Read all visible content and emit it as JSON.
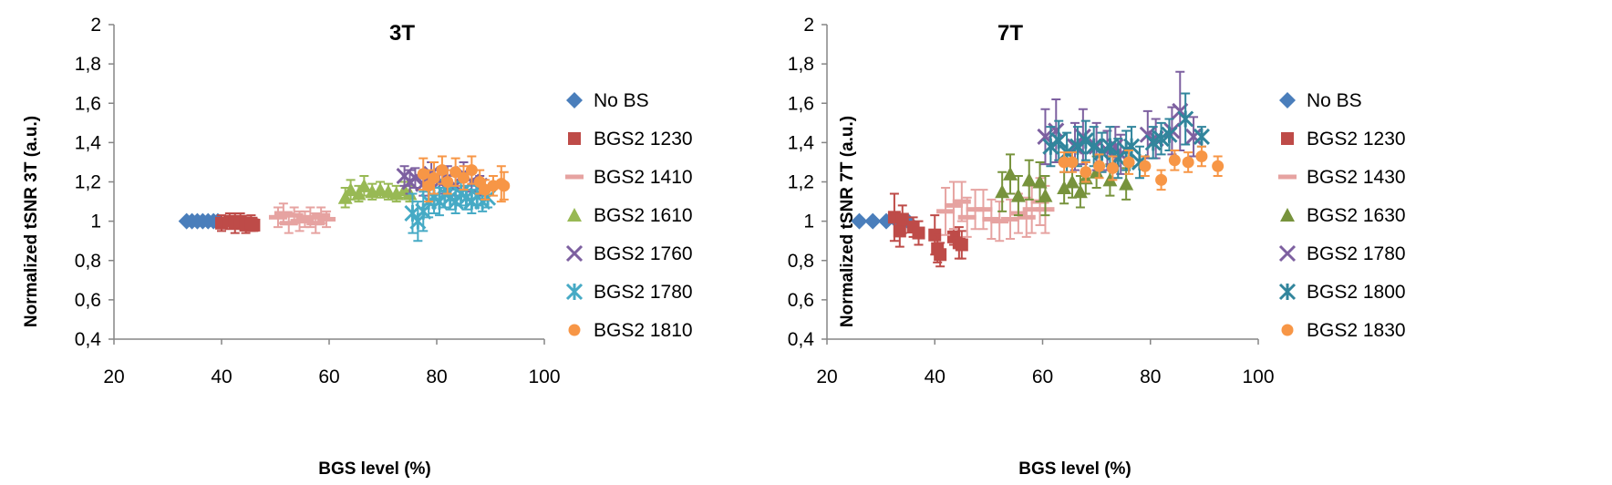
{
  "chart_data": [
    {
      "type": "scatter",
      "title": "3T",
      "xlabel": "BGS level (%)",
      "ylabel": "Normalized tSNR  3T (a.u.)",
      "xlim": [
        20,
        100
      ],
      "ylim": [
        0.4,
        2
      ],
      "xticks": [
        "20",
        "40",
        "60",
        "80",
        "100"
      ],
      "yticks": [
        "0,4",
        "0,6",
        "0,8",
        "1",
        "1,2",
        "1,4",
        "1,6",
        "1,8",
        "2"
      ],
      "error_bars": true,
      "legend_position": "right",
      "series": [
        {
          "name": "No BS",
          "marker": "diamond",
          "color": "#4a7ebb",
          "points": [
            [
              33.5,
              1.0,
              0
            ],
            [
              34.5,
              1.0,
              0
            ],
            [
              35.5,
              1.0,
              0
            ],
            [
              36.5,
              1.0,
              0
            ],
            [
              37.5,
              1.0,
              0
            ],
            [
              38.5,
              1.0,
              0
            ],
            [
              39.3,
              1.0,
              0
            ]
          ]
        },
        {
          "name": "BGS2 1230",
          "marker": "square",
          "color": "#be4b48",
          "points": [
            [
              40,
              0.99,
              0.04
            ],
            [
              41.5,
              1.0,
              0.04
            ],
            [
              42.5,
              0.99,
              0.05
            ],
            [
              43.5,
              1.0,
              0.04
            ],
            [
              44.5,
              0.98,
              0.04
            ],
            [
              45.5,
              0.99,
              0.04
            ],
            [
              46,
              0.98,
              0.03
            ]
          ]
        },
        {
          "name": "BGS2 1410",
          "marker": "dash",
          "color": "#e6a3a1",
          "points": [
            [
              50.5,
              1.02,
              0.05
            ],
            [
              51.5,
              1.04,
              0.05
            ],
            [
              52.5,
              0.99,
              0.05
            ],
            [
              53.5,
              1.03,
              0.04
            ],
            [
              54.5,
              1.0,
              0.05
            ],
            [
              55.5,
              1.01,
              0.04
            ],
            [
              56.5,
              1.02,
              0.05
            ],
            [
              57.5,
              0.99,
              0.05
            ],
            [
              58.5,
              1.03,
              0.04
            ],
            [
              59.5,
              1.01,
              0.04
            ]
          ]
        },
        {
          "name": "BGS2 1610",
          "marker": "triangle",
          "color": "#98b954",
          "points": [
            [
              63,
              1.12,
              0.05
            ],
            [
              64,
              1.16,
              0.05
            ],
            [
              65.5,
              1.14,
              0.04
            ],
            [
              66.5,
              1.18,
              0.05
            ],
            [
              68,
              1.15,
              0.04
            ],
            [
              69.5,
              1.16,
              0.04
            ],
            [
              71,
              1.15,
              0.04
            ],
            [
              72.5,
              1.14,
              0.04
            ],
            [
              74,
              1.16,
              0.04
            ],
            [
              75,
              1.14,
              0.04
            ]
          ]
        },
        {
          "name": "BGS2 1760",
          "marker": "x",
          "color": "#7d60a0",
          "points": [
            [
              74,
              1.23,
              0.05
            ],
            [
              75,
              1.2,
              0.06
            ],
            [
              76,
              1.22,
              0.05
            ],
            [
              77.5,
              1.19,
              0.06
            ],
            [
              79,
              1.24,
              0.06
            ],
            [
              80.5,
              1.2,
              0.06
            ],
            [
              82,
              1.22,
              0.06
            ],
            [
              83.5,
              1.18,
              0.05
            ],
            [
              85,
              1.24,
              0.06
            ],
            [
              86.5,
              1.2,
              0.05
            ],
            [
              88,
              1.18,
              0.05
            ]
          ]
        },
        {
          "name": "BGS2 1780",
          "marker": "asterisk",
          "color": "#46aac5",
          "points": [
            [
              75.5,
              1.04,
              0.1
            ],
            [
              76.5,
              1.0,
              0.1
            ],
            [
              77.5,
              1.05,
              0.1
            ],
            [
              78.5,
              1.1,
              0.08
            ],
            [
              79.5,
              1.12,
              0.08
            ],
            [
              80.5,
              1.1,
              0.07
            ],
            [
              81.5,
              1.14,
              0.07
            ],
            [
              82.5,
              1.12,
              0.06
            ],
            [
              83.5,
              1.1,
              0.06
            ],
            [
              84.5,
              1.14,
              0.06
            ],
            [
              85.5,
              1.12,
              0.06
            ],
            [
              86.5,
              1.1,
              0.06
            ],
            [
              87.5,
              1.13,
              0.05
            ],
            [
              88.5,
              1.1,
              0.05
            ],
            [
              89.5,
              1.12,
              0.05
            ]
          ]
        },
        {
          "name": "BGS2 1810",
          "marker": "circle",
          "color": "#f79646",
          "points": [
            [
              77.5,
              1.24,
              0.08
            ],
            [
              78.5,
              1.18,
              0.08
            ],
            [
              79.5,
              1.22,
              0.08
            ],
            [
              81,
              1.26,
              0.07
            ],
            [
              82,
              1.2,
              0.06
            ],
            [
              83.5,
              1.25,
              0.07
            ],
            [
              85,
              1.22,
              0.06
            ],
            [
              86.5,
              1.26,
              0.07
            ],
            [
              88,
              1.2,
              0.06
            ],
            [
              89,
              1.16,
              0.05
            ],
            [
              90.5,
              1.18,
              0.05
            ],
            [
              92,
              1.19,
              0.09
            ],
            [
              92.5,
              1.18,
              0.07
            ]
          ]
        }
      ]
    },
    {
      "type": "scatter",
      "title": "7T",
      "xlabel": "BGS level (%)",
      "ylabel": "Normalized tSNR 7T (a.u.)",
      "xlim": [
        20,
        100
      ],
      "ylim": [
        0.4,
        2
      ],
      "xticks": [
        "20",
        "40",
        "60",
        "80",
        "100"
      ],
      "yticks": [
        "0,4",
        "0,6",
        "0,8",
        "1",
        "1,2",
        "1,4",
        "1,6",
        "1,8",
        "2"
      ],
      "error_bars": true,
      "legend_position": "right",
      "series": [
        {
          "name": "No BS",
          "marker": "diamond",
          "color": "#4a7ebb",
          "points": [
            [
              26,
              1.0,
              0
            ],
            [
              28.5,
              1.0,
              0
            ],
            [
              31,
              1.0,
              0
            ],
            [
              33,
              1.0,
              0
            ],
            [
              35,
              1.0,
              0
            ]
          ]
        },
        {
          "name": "BGS2 1230",
          "marker": "square",
          "color": "#be4b48",
          "points": [
            [
              32.5,
              1.02,
              0.12
            ],
            [
              33.5,
              0.95,
              0.08
            ],
            [
              34,
              1.01,
              0.07
            ],
            [
              36,
              0.97,
              0.05
            ],
            [
              37,
              0.94,
              0.06
            ],
            [
              40,
              0.93,
              0.1
            ],
            [
              40.5,
              0.86,
              0.07
            ],
            [
              41,
              0.83,
              0.06
            ],
            [
              43.5,
              0.92,
              0.04
            ],
            [
              44.5,
              0.89,
              0.08
            ],
            [
              45,
              0.88,
              0.07
            ]
          ]
        },
        {
          "name": "BGS2 1430",
          "marker": "dash",
          "color": "#e6a3a1",
          "points": [
            [
              42,
              1.05,
              0.12
            ],
            [
              43.5,
              1.08,
              0.12
            ],
            [
              45,
              1.1,
              0.1
            ],
            [
              46,
              1.02,
              0.1
            ],
            [
              47.5,
              1.06,
              0.1
            ],
            [
              49,
              1.06,
              0.1
            ],
            [
              50.5,
              1.01,
              0.1
            ],
            [
              52,
              1.0,
              0.1
            ],
            [
              54,
              1.01,
              0.1
            ],
            [
              55.5,
              1.04,
              0.1
            ],
            [
              57,
              1.02,
              0.1
            ],
            [
              58,
              1.06,
              0.12
            ],
            [
              59.5,
              1.1,
              0.12
            ],
            [
              60.5,
              1.06,
              0.12
            ]
          ]
        },
        {
          "name": "BGS2 1630",
          "marker": "triangle",
          "color": "#77933c",
          "points": [
            [
              52.5,
              1.15,
              0.1
            ],
            [
              54,
              1.24,
              0.1
            ],
            [
              55.5,
              1.13,
              0.1
            ],
            [
              57.5,
              1.21,
              0.1
            ],
            [
              59.5,
              1.2,
              0.1
            ],
            [
              60.5,
              1.13,
              0.1
            ],
            [
              64,
              1.17,
              0.08
            ],
            [
              65.5,
              1.2,
              0.08
            ],
            [
              67,
              1.15,
              0.08
            ],
            [
              68,
              1.22,
              0.08
            ],
            [
              70,
              1.25,
              0.08
            ],
            [
              72.5,
              1.21,
              0.08
            ],
            [
              75.5,
              1.19,
              0.08
            ]
          ]
        },
        {
          "name": "BGS2 1780",
          "marker": "x",
          "color": "#7d60a0",
          "points": [
            [
              60.5,
              1.43,
              0.14
            ],
            [
              62.5,
              1.46,
              0.16
            ],
            [
              66,
              1.38,
              0.12
            ],
            [
              67.5,
              1.43,
              0.14
            ],
            [
              70,
              1.38,
              0.12
            ],
            [
              72,
              1.36,
              0.1
            ],
            [
              73.5,
              1.38,
              0.1
            ],
            [
              74.5,
              1.34,
              0.1
            ],
            [
              79.5,
              1.44,
              0.12
            ],
            [
              81,
              1.42,
              0.1
            ],
            [
              84,
              1.46,
              0.12
            ],
            [
              85.5,
              1.56,
              0.2
            ],
            [
              88,
              1.43,
              0.1
            ]
          ]
        },
        {
          "name": "BGS2 1800",
          "marker": "asterisk",
          "color": "#31859c",
          "points": [
            [
              61.5,
              1.38,
              0.1
            ],
            [
              63,
              1.41,
              0.1
            ],
            [
              64.5,
              1.35,
              0.1
            ],
            [
              66.5,
              1.38,
              0.1
            ],
            [
              68,
              1.41,
              0.1
            ],
            [
              69.5,
              1.38,
              0.1
            ],
            [
              71,
              1.35,
              0.1
            ],
            [
              72.5,
              1.38,
              0.1
            ],
            [
              74,
              1.32,
              0.1
            ],
            [
              75.5,
              1.36,
              0.1
            ],
            [
              76.5,
              1.38,
              0.1
            ],
            [
              78,
              1.3,
              0.08
            ],
            [
              80.5,
              1.4,
              0.08
            ],
            [
              82,
              1.42,
              0.08
            ],
            [
              83.5,
              1.44,
              0.08
            ],
            [
              86.5,
              1.52,
              0.13
            ],
            [
              89.5,
              1.43,
              0.05
            ]
          ]
        },
        {
          "name": "BGS2 1830",
          "marker": "circle",
          "color": "#f79646",
          "points": [
            [
              64,
              1.3,
              0.05
            ],
            [
              65.5,
              1.3,
              0.05
            ],
            [
              68,
              1.25,
              0.05
            ],
            [
              70.5,
              1.28,
              0.06
            ],
            [
              73,
              1.27,
              0.06
            ],
            [
              76,
              1.3,
              0.06
            ],
            [
              79,
              1.28,
              0.05
            ],
            [
              82,
              1.21,
              0.05
            ],
            [
              84.5,
              1.31,
              0.05
            ],
            [
              87,
              1.3,
              0.05
            ],
            [
              89.5,
              1.33,
              0.05
            ],
            [
              92.5,
              1.28,
              0.05
            ]
          ]
        }
      ]
    }
  ]
}
